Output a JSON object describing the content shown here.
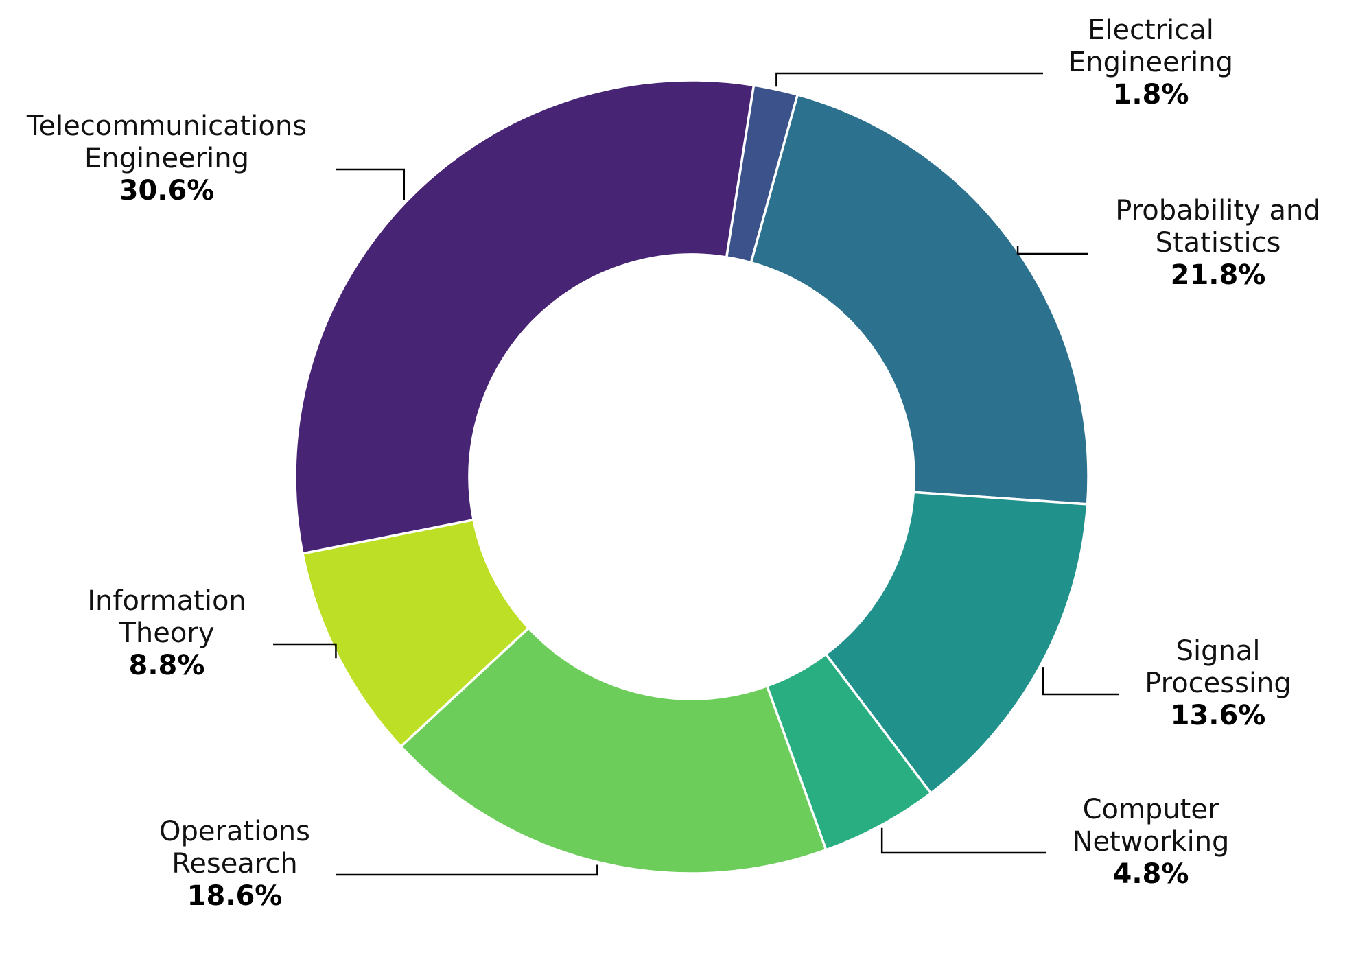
{
  "chart_data": {
    "type": "pie",
    "donut": true,
    "start_angle_deg": 81,
    "direction": "clockwise",
    "legend": "none",
    "slices": [
      {
        "label_lines": [
          "Electrical",
          "Engineering"
        ],
        "pct_label": "1.8%",
        "value": 1.8,
        "color": "#3b528b"
      },
      {
        "label_lines": [
          "Probability and",
          "Statistics"
        ],
        "pct_label": "21.8%",
        "value": 21.8,
        "color": "#2c718e"
      },
      {
        "label_lines": [
          "Signal",
          "Processing"
        ],
        "pct_label": "13.6%",
        "value": 13.6,
        "color": "#21918c"
      },
      {
        "label_lines": [
          "Computer",
          "Networking"
        ],
        "pct_label": "4.8%",
        "value": 4.8,
        "color": "#28ae80"
      },
      {
        "label_lines": [
          "Operations",
          "Research"
        ],
        "pct_label": "18.6%",
        "value": 18.6,
        "color": "#6ccd5a"
      },
      {
        "label_lines": [
          "Information",
          "Theory"
        ],
        "pct_label": "8.8%",
        "value": 8.8,
        "color": "#bddf26"
      },
      {
        "label_lines": [
          "Telecommunications",
          "Engineering"
        ],
        "pct_label": "30.6%",
        "value": 30.6,
        "color": "#482475"
      }
    ]
  }
}
